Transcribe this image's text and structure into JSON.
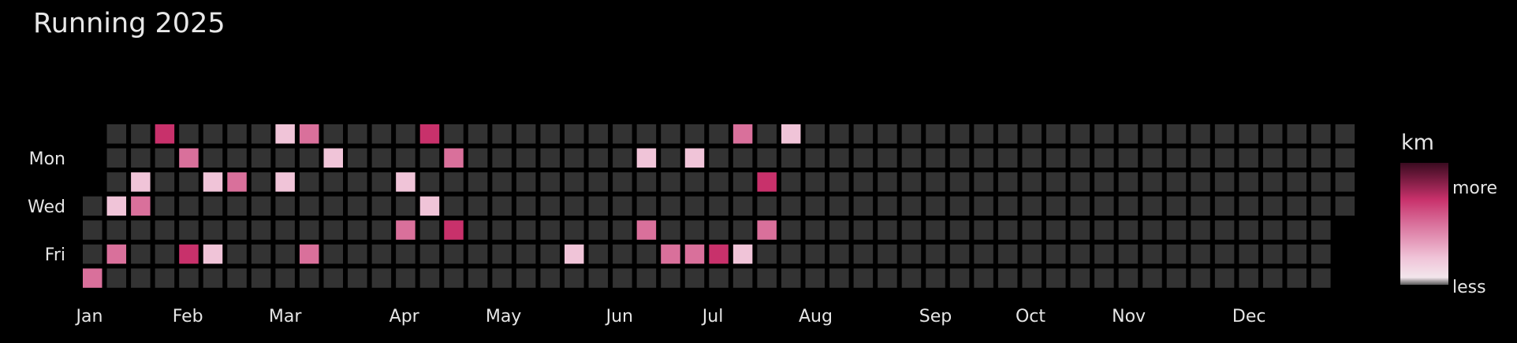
{
  "chart_data": {
    "type": "heatmap",
    "title": "Running 2025",
    "x_tick_labels": [
      "Jan",
      "Feb",
      "Mar",
      "Apr",
      "May",
      "Jun",
      "Jul",
      "Aug",
      "Sep",
      "Oct",
      "Nov",
      "Dec"
    ],
    "y_tick_labels": [
      "Mon",
      "Wed",
      "Fri"
    ],
    "y_tick_rows": [
      1,
      3,
      5
    ],
    "num_weeks": 53,
    "first_weekday_row": 3,
    "num_days": 365,
    "colorbar": {
      "title": "km",
      "top_label": "more",
      "bottom_label": "less",
      "empty_color": "#333333",
      "colors": [
        "#4a4a4a",
        "#f0c4d8",
        "#d9709b",
        "#c8316b",
        "#4a0f2a"
      ]
    },
    "active_days": [
      {
        "week": 0,
        "weekday": 6,
        "level": 2
      },
      {
        "week": 1,
        "weekday": 3,
        "level": 1
      },
      {
        "week": 1,
        "weekday": 5,
        "level": 2
      },
      {
        "week": 2,
        "weekday": 2,
        "level": 1
      },
      {
        "week": 2,
        "weekday": 3,
        "level": 2
      },
      {
        "week": 3,
        "weekday": 0,
        "level": 3
      },
      {
        "week": 4,
        "weekday": 1,
        "level": 2
      },
      {
        "week": 4,
        "weekday": 5,
        "level": 3
      },
      {
        "week": 5,
        "weekday": 2,
        "level": 1
      },
      {
        "week": 5,
        "weekday": 5,
        "level": 1
      },
      {
        "week": 6,
        "weekday": 2,
        "level": 2
      },
      {
        "week": 8,
        "weekday": 0,
        "level": 1
      },
      {
        "week": 8,
        "weekday": 2,
        "level": 1
      },
      {
        "week": 9,
        "weekday": 0,
        "level": 2
      },
      {
        "week": 9,
        "weekday": 5,
        "level": 2
      },
      {
        "week": 10,
        "weekday": 1,
        "level": 1
      },
      {
        "week": 13,
        "weekday": 2,
        "level": 1
      },
      {
        "week": 13,
        "weekday": 4,
        "level": 2
      },
      {
        "week": 14,
        "weekday": 0,
        "level": 3
      },
      {
        "week": 14,
        "weekday": 3,
        "level": 1
      },
      {
        "week": 15,
        "weekday": 1,
        "level": 2
      },
      {
        "week": 15,
        "weekday": 4,
        "level": 3
      },
      {
        "week": 20,
        "weekday": 5,
        "level": 1
      },
      {
        "week": 23,
        "weekday": 1,
        "level": 1
      },
      {
        "week": 23,
        "weekday": 4,
        "level": 2
      },
      {
        "week": 24,
        "weekday": 5,
        "level": 2
      },
      {
        "week": 25,
        "weekday": 1,
        "level": 1
      },
      {
        "week": 25,
        "weekday": 5,
        "level": 2
      },
      {
        "week": 26,
        "weekday": 5,
        "level": 3
      },
      {
        "week": 27,
        "weekday": 0,
        "level": 2
      },
      {
        "week": 27,
        "weekday": 5,
        "level": 1
      },
      {
        "week": 28,
        "weekday": 2,
        "level": 3
      },
      {
        "week": 28,
        "weekday": 4,
        "level": 2
      },
      {
        "week": 29,
        "weekday": 0,
        "level": 1
      }
    ]
  }
}
